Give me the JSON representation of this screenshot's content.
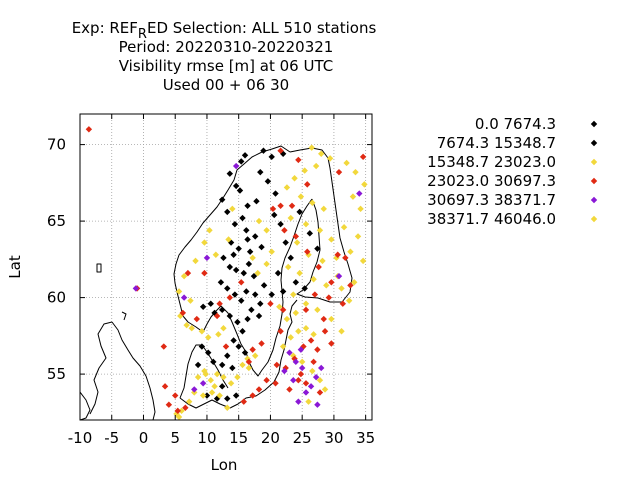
{
  "chart_data": {
    "type": "scatter",
    "title_lines": [
      "Exp: REF",
      "Period: 20220310-20220321",
      "Visibility rmse [m] at  06 UTC",
      "Used  00 + 06 30"
    ],
    "title_line1": {
      "prefix": "Exp: REF",
      "subscript": "R",
      "suffix": "ED   Selection: ALL    510 stations"
    },
    "xlabel": "Lon",
    "ylabel": "Lat",
    "xlim": [
      -10,
      36
    ],
    "ylim": [
      52,
      72
    ],
    "xticks": [
      -10,
      -5,
      0,
      5,
      10,
      15,
      20,
      25,
      30,
      35
    ],
    "yticks": [
      55,
      60,
      65,
      70
    ],
    "grid": true,
    "legend_position": "right",
    "legend": [
      {
        "label": "0.0 7674.3",
        "color": "#000000"
      },
      {
        "label": "7674.3 15348.7",
        "color": "#000000"
      },
      {
        "label": "15348.7 23023.0",
        "color": "#f2d83c"
      },
      {
        "label": "23023.0 30697.3",
        "color": "#e02a14"
      },
      {
        "label": "30697.3 38371.7",
        "color": "#8a18d6"
      },
      {
        "label": "38371.7 46046.0",
        "color": "#f2d83c"
      }
    ],
    "series": [
      {
        "class": 0,
        "color": "#000000",
        "points": [
          [
            13.6,
            68.1
          ],
          [
            15.4,
            68.9
          ],
          [
            16.0,
            69.3
          ],
          [
            18.9,
            69.6
          ],
          [
            20.2,
            69.2
          ],
          [
            22.0,
            69.4
          ],
          [
            14.6,
            67.3
          ],
          [
            15.2,
            67.0
          ],
          [
            12.4,
            66.4
          ],
          [
            13.2,
            65.6
          ],
          [
            16.4,
            66.0
          ],
          [
            17.8,
            66.3
          ],
          [
            15.6,
            65.2
          ],
          [
            14.4,
            64.8
          ],
          [
            16.2,
            64.4
          ],
          [
            17.6,
            64.0
          ],
          [
            13.8,
            63.6
          ],
          [
            15.0,
            63.2
          ],
          [
            16.8,
            63.0
          ],
          [
            18.6,
            63.3
          ],
          [
            12.6,
            62.6
          ],
          [
            13.6,
            62.0
          ],
          [
            14.6,
            61.8
          ],
          [
            15.8,
            61.6
          ],
          [
            16.6,
            62.2
          ],
          [
            17.4,
            61.4
          ],
          [
            12.2,
            61.0
          ],
          [
            13.2,
            60.6
          ],
          [
            14.4,
            60.2
          ],
          [
            15.4,
            59.8
          ],
          [
            16.2,
            60.4
          ],
          [
            17.6,
            60.2
          ],
          [
            18.4,
            59.6
          ],
          [
            19.0,
            60.8
          ],
          [
            9.4,
            59.4
          ],
          [
            10.6,
            59.6
          ],
          [
            11.2,
            59.0
          ],
          [
            12.4,
            59.2
          ],
          [
            13.6,
            58.8
          ],
          [
            14.8,
            58.4
          ],
          [
            15.6,
            57.8
          ],
          [
            16.4,
            58.6
          ],
          [
            14.2,
            57.2
          ],
          [
            15.0,
            56.8
          ],
          [
            16.0,
            56.4
          ],
          [
            13.2,
            56.2
          ],
          [
            12.4,
            55.6
          ],
          [
            14.0,
            55.4
          ],
          [
            11.0,
            55.8
          ],
          [
            10.2,
            56.4
          ],
          [
            9.2,
            56.8
          ],
          [
            8.6,
            55.6
          ],
          [
            10.0,
            53.6
          ],
          [
            11.6,
            53.4
          ],
          [
            13.2,
            53.4
          ],
          [
            14.6,
            53.6
          ],
          [
            12.4,
            54.2
          ],
          [
            20.6,
            65.4
          ],
          [
            21.6,
            64.8
          ],
          [
            22.4,
            63.6
          ],
          [
            23.2,
            62.6
          ],
          [
            21.2,
            61.6
          ],
          [
            20.2,
            60.2
          ],
          [
            22.0,
            60.4
          ],
          [
            24.0,
            61.0
          ],
          [
            25.4,
            60.6
          ],
          [
            24.6,
            65.6
          ],
          [
            26.2,
            64.2
          ],
          [
            27.4,
            63.2
          ],
          [
            18.4,
            68.2
          ],
          [
            19.6,
            67.6
          ],
          [
            20.8,
            66.8
          ],
          [
            14.2,
            62.8
          ],
          [
            16.4,
            63.8
          ],
          [
            17.0,
            59.2
          ],
          [
            18.2,
            58.8
          ]
        ]
      },
      {
        "class": 2,
        "color": "#f2d83c",
        "points": [
          [
            26.5,
            69.8
          ],
          [
            28.0,
            69.4
          ],
          [
            29.4,
            69.1
          ],
          [
            27.2,
            68.6
          ],
          [
            25.4,
            68.3
          ],
          [
            23.8,
            67.8
          ],
          [
            22.6,
            67.2
          ],
          [
            24.8,
            66.6
          ],
          [
            26.6,
            66.2
          ],
          [
            28.4,
            65.8
          ],
          [
            23.2,
            65.2
          ],
          [
            25.6,
            64.8
          ],
          [
            27.8,
            64.4
          ],
          [
            29.6,
            63.8
          ],
          [
            24.2,
            63.6
          ],
          [
            26.0,
            62.8
          ],
          [
            28.2,
            62.4
          ],
          [
            30.4,
            62.6
          ],
          [
            22.8,
            62.0
          ],
          [
            24.6,
            61.6
          ],
          [
            26.8,
            61.2
          ],
          [
            28.8,
            60.8
          ],
          [
            31.2,
            60.6
          ],
          [
            23.6,
            60.2
          ],
          [
            25.6,
            59.6
          ],
          [
            27.4,
            59.2
          ],
          [
            21.4,
            59.4
          ],
          [
            17.2,
            62.6
          ],
          [
            18.0,
            61.6
          ],
          [
            19.4,
            62.2
          ],
          [
            20.2,
            63.0
          ],
          [
            13.4,
            63.8
          ],
          [
            14.0,
            65.8
          ],
          [
            18.2,
            65.0
          ],
          [
            19.4,
            64.4
          ],
          [
            10.4,
            64.4
          ],
          [
            9.6,
            63.6
          ],
          [
            11.4,
            62.8
          ],
          [
            8.2,
            62.4
          ],
          [
            6.4,
            61.4
          ],
          [
            5.6,
            60.4
          ],
          [
            7.4,
            59.8
          ],
          [
            5.8,
            58.8
          ],
          [
            6.8,
            58.2
          ],
          [
            7.6,
            58.0
          ],
          [
            9.2,
            57.8
          ],
          [
            10.2,
            57.4
          ],
          [
            11.8,
            57.6
          ],
          [
            12.6,
            58.0
          ],
          [
            8.6,
            54.8
          ],
          [
            9.6,
            55.2
          ],
          [
            10.6,
            54.6
          ],
          [
            11.6,
            55.0
          ],
          [
            12.6,
            54.8
          ],
          [
            13.8,
            54.4
          ],
          [
            14.8,
            54.8
          ],
          [
            15.6,
            55.6
          ],
          [
            16.4,
            56.0
          ],
          [
            8.0,
            53.8
          ],
          [
            9.4,
            53.6
          ],
          [
            10.8,
            53.8
          ],
          [
            12.0,
            53.6
          ],
          [
            7.2,
            53.2
          ],
          [
            13.2,
            52.8
          ],
          [
            6.0,
            52.6
          ],
          [
            5.2,
            52.4
          ],
          [
            22.0,
            56.8
          ],
          [
            23.2,
            57.4
          ],
          [
            24.4,
            57.8
          ],
          [
            25.6,
            58.0
          ],
          [
            26.8,
            57.6
          ],
          [
            22.6,
            58.6
          ],
          [
            24.0,
            59.0
          ],
          [
            23.6,
            56.2
          ],
          [
            25.0,
            55.8
          ],
          [
            26.6,
            55.2
          ],
          [
            27.8,
            54.6
          ],
          [
            28.6,
            54.0
          ],
          [
            26.0,
            53.2
          ],
          [
            32.0,
            68.8
          ],
          [
            33.4,
            68.2
          ],
          [
            34.8,
            67.4
          ],
          [
            33.0,
            66.6
          ],
          [
            34.2,
            65.8
          ],
          [
            31.6,
            64.6
          ],
          [
            33.8,
            64.0
          ],
          [
            32.6,
            63.0
          ],
          [
            34.6,
            62.4
          ],
          [
            30.6,
            61.4
          ],
          [
            33.2,
            61.0
          ],
          [
            32.4,
            59.8
          ],
          [
            29.6,
            58.6
          ],
          [
            31.2,
            57.8
          ]
        ]
      },
      {
        "class": 3,
        "color": "#e02a14",
        "points": [
          [
            -8.6,
            71.0
          ],
          [
            21.6,
            69.6
          ],
          [
            24.4,
            69.0
          ],
          [
            34.6,
            69.2
          ],
          [
            30.8,
            68.2
          ],
          [
            25.8,
            67.4
          ],
          [
            21.6,
            66.0
          ],
          [
            23.4,
            66.0
          ],
          [
            20.4,
            65.8
          ],
          [
            22.2,
            64.4
          ],
          [
            24.0,
            64.0
          ],
          [
            25.8,
            63.0
          ],
          [
            27.6,
            62.0
          ],
          [
            29.6,
            61.0
          ],
          [
            31.4,
            59.6
          ],
          [
            32.6,
            60.8
          ],
          [
            29.2,
            60.0
          ],
          [
            27.0,
            60.2
          ],
          [
            20.0,
            59.6
          ],
          [
            22.0,
            59.2
          ],
          [
            9.6,
            61.6
          ],
          [
            7.0,
            61.6
          ],
          [
            12.0,
            59.6
          ],
          [
            11.6,
            58.8
          ],
          [
            8.4,
            58.6
          ],
          [
            6.2,
            59.0
          ],
          [
            13.0,
            56.8
          ],
          [
            17.2,
            56.6
          ],
          [
            18.6,
            57.0
          ],
          [
            16.6,
            55.8
          ],
          [
            19.4,
            54.6
          ],
          [
            20.8,
            54.4
          ],
          [
            18.2,
            54.0
          ],
          [
            17.2,
            53.6
          ],
          [
            15.8,
            53.2
          ],
          [
            5.0,
            53.6
          ],
          [
            3.4,
            54.2
          ],
          [
            4.0,
            53.0
          ],
          [
            5.4,
            52.6
          ],
          [
            6.6,
            52.8
          ],
          [
            22.4,
            55.4
          ],
          [
            23.8,
            56.0
          ],
          [
            25.2,
            56.8
          ],
          [
            26.4,
            57.2
          ],
          [
            27.4,
            56.6
          ],
          [
            28.6,
            57.8
          ],
          [
            25.6,
            54.4
          ],
          [
            24.4,
            54.6
          ],
          [
            23.0,
            54.0
          ],
          [
            27.8,
            53.8
          ],
          [
            26.8,
            55.8
          ],
          [
            24.8,
            55.0
          ],
          [
            21.6,
            57.8
          ],
          [
            3.2,
            56.8
          ],
          [
            -1.0,
            60.6
          ],
          [
            30.6,
            62.8
          ],
          [
            31.8,
            62.6
          ],
          [
            13.6,
            60.0
          ],
          [
            15.4,
            61.0
          ],
          [
            25.6,
            59.2
          ],
          [
            28.4,
            58.6
          ],
          [
            29.6,
            57.0
          ],
          [
            21.0,
            55.6
          ]
        ]
      },
      {
        "class": 4,
        "color": "#8a18d6",
        "points": [
          [
            14.6,
            68.6
          ],
          [
            10.0,
            62.6
          ],
          [
            6.4,
            60.0
          ],
          [
            -1.2,
            60.6
          ],
          [
            30.8,
            61.4
          ],
          [
            34.0,
            66.8
          ],
          [
            23.0,
            56.4
          ],
          [
            24.0,
            55.8
          ],
          [
            25.0,
            55.4
          ],
          [
            22.2,
            55.2
          ],
          [
            23.6,
            54.6
          ],
          [
            26.4,
            54.2
          ],
          [
            27.2,
            54.8
          ],
          [
            25.6,
            53.8
          ],
          [
            28.0,
            55.4
          ],
          [
            24.4,
            53.2
          ],
          [
            27.4,
            53.0
          ],
          [
            9.4,
            54.4
          ],
          [
            8.0,
            54.0
          ],
          [
            24.8,
            56.6
          ]
        ]
      },
      {
        "class": 5,
        "color": "#f2d83c",
        "points": [
          [
            16.6,
            55.4
          ],
          [
            17.6,
            56.2
          ],
          [
            9.8,
            55.0
          ],
          [
            11.2,
            54.2
          ],
          [
            5.6,
            52.2
          ]
        ]
      }
    ]
  }
}
